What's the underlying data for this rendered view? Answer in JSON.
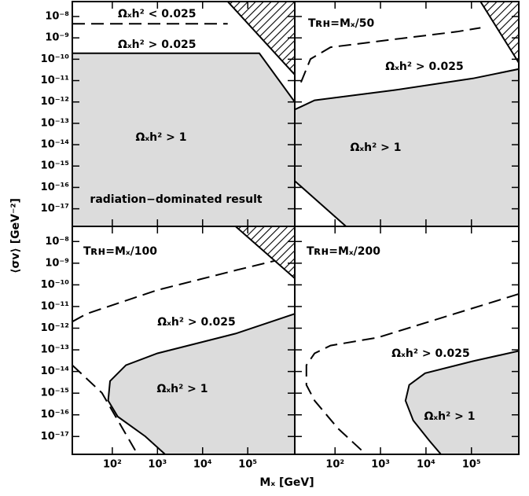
{
  "figure": {
    "xlabel": "Mₓ [GeV]",
    "ylabel": "⟨σv⟩ [GeV⁻²]"
  },
  "chart_data": [
    {
      "type": "line",
      "xscale": "log",
      "yscale": "log",
      "xlim": [
        13,
        1100000
      ],
      "ylim": [
        1.5e-18,
        5e-08
      ],
      "xticks": [
        100,
        1000,
        10000,
        100000
      ],
      "yticks": [
        {
          "value": 1e-17,
          "label": "10⁻¹⁷"
        },
        {
          "value": 1e-16,
          "label": "10⁻¹⁶"
        },
        {
          "value": 1e-15,
          "label": "10⁻¹⁵"
        },
        {
          "value": 1e-14,
          "label": "10⁻¹⁴"
        },
        {
          "value": 1e-13,
          "label": "10⁻¹³"
        },
        {
          "value": 1e-12,
          "label": "10⁻¹²"
        },
        {
          "value": 1e-11,
          "label": "10⁻¹¹"
        },
        {
          "value": 1e-10,
          "label": "10⁻¹⁰"
        },
        {
          "value": 1e-09,
          "label": "10⁻⁹"
        },
        {
          "value": 1e-08,
          "label": "10⁻⁸"
        }
      ],
      "shade": {
        "color": "#dcdcdc",
        "x": [
          13,
          180000,
          1100000,
          1100000,
          13
        ],
        "y": [
          1.9e-10,
          1.9e-10,
          1e-12,
          1.5e-18,
          1.5e-18
        ]
      },
      "hatch": {
        "x": [
          36000,
          1100000,
          1100000
        ],
        "y": [
          5e-08,
          5e-08,
          1.9e-11
        ]
      },
      "dashed": {
        "x": [
          13,
          36000
        ],
        "y": [
          4.6e-09,
          4.6e-09
        ]
      },
      "annotations": [
        {
          "text": "Ωₓh² < 0.025"
        },
        {
          "text": "Ωₓh² > 0.025"
        },
        {
          "text": "Ωₓh² > 1"
        },
        {
          "text": "radiation−dominated result"
        }
      ]
    },
    {
      "type": "line",
      "xscale": "log",
      "yscale": "log",
      "xlim": [
        13,
        1100000
      ],
      "ylim": [
        1.5e-18,
        5e-08
      ],
      "xticks": [
        100,
        1000,
        10000,
        100000
      ],
      "yticks": [
        1e-17,
        1e-16,
        1e-15,
        1e-14,
        1e-13,
        1e-12,
        1e-11,
        1e-10,
        1e-09,
        1e-08
      ],
      "shade": {
        "color": "#dcdcdc",
        "x": [
          13,
          35.5,
          1950,
          107000,
          1100000,
          1100000,
          174,
          13
        ],
        "y": [
          4.4e-13,
          1.2e-12,
          3.55e-12,
          1.26e-11,
          3.47e-11,
          1.5e-18,
          1.5e-18,
          2e-16
        ]
      },
      "hatch": {
        "x": [
          158000,
          1100000,
          1100000
        ],
        "y": [
          5e-08,
          5e-08,
          6.8e-11
        ]
      },
      "dashed": {
        "x": [
          17.8,
          28.8,
          79.4,
          1950,
          47900,
          158000
        ],
        "y": [
          8.3e-12,
          1.02e-10,
          3.63e-10,
          8.5e-10,
          1.95e-09,
          2.95e-09
        ]
      },
      "annotations": [
        {
          "text": "Tʀʜ=Mₓ/50"
        },
        {
          "text": "Ωₓh² > 0.025"
        },
        {
          "text": "Ωₓh² > 1"
        }
      ]
    },
    {
      "type": "line",
      "xscale": "log",
      "yscale": "log",
      "xlim": [
        13,
        1100000
      ],
      "ylim": [
        1.5e-18,
        5e-08
      ],
      "xticks": [
        {
          "value": 100,
          "label": "10²"
        },
        {
          "value": 1000,
          "label": "10³"
        },
        {
          "value": 10000,
          "label": "10⁴"
        },
        {
          "value": 100000,
          "label": "10⁵"
        }
      ],
      "yticks": [
        {
          "value": 1e-17,
          "label": "10⁻¹⁷"
        },
        {
          "value": 1e-16,
          "label": "10⁻¹⁶"
        },
        {
          "value": 1e-15,
          "label": "10⁻¹⁵"
        },
        {
          "value": 1e-14,
          "label": "10⁻¹⁴"
        },
        {
          "value": 1e-13,
          "label": "10⁻¹³"
        },
        {
          "value": 1e-12,
          "label": "10⁻¹²"
        },
        {
          "value": 1e-11,
          "label": "10⁻¹¹"
        },
        {
          "value": 1e-10,
          "label": "10⁻¹⁰"
        },
        {
          "value": 1e-09,
          "label": "10⁻⁹"
        },
        {
          "value": 1e-08,
          "label": "10⁻⁸"
        }
      ],
      "shade": {
        "color": "#dcdcdc",
        "x": [
          1100000,
          53700,
          1000,
          200,
          89,
          81,
          132,
          537,
          1480,
          1100000
        ],
        "y": [
          4.6e-12,
          5.6e-13,
          6.9e-14,
          1.95e-14,
          3.6e-15,
          4.5e-16,
          8.3e-17,
          1.02e-17,
          1.5e-18,
          1.5e-18
        ]
      },
      "hatch": {
        "x": [
          53700,
          1100000,
          1100000
        ],
        "y": [
          5e-08,
          5e-08,
          2e-10
        ]
      },
      "dashed": {
        "x": [
          13,
          26.9,
          1000,
          53700,
          398000,
          null,
          13,
          58.9,
          363
        ],
        "y": [
          2e-12,
          4.6e-12,
          5.75e-11,
          4.7e-10,
          1.29e-09,
          null,
          1.95e-14,
          1.02e-15,
          1.5e-18
        ]
      },
      "annotations": [
        {
          "text": "Tʀʜ=Mₓ/100"
        },
        {
          "text": "Ωₓh² > 0.025"
        },
        {
          "text": "Ωₓh² > 1"
        }
      ]
    },
    {
      "type": "line",
      "xscale": "log",
      "yscale": "log",
      "xlim": [
        13,
        1100000
      ],
      "ylim": [
        1.5e-18,
        5e-08
      ],
      "xticks": [
        {
          "value": 100,
          "label": "10²"
        },
        {
          "value": 1000,
          "label": "10³"
        },
        {
          "value": 10000,
          "label": "10⁴"
        },
        {
          "value": 100000,
          "label": "10⁵"
        }
      ],
      "yticks": [
        1e-17,
        1e-16,
        1e-15,
        1e-14,
        1e-13,
        1e-12,
        1e-11,
        1e-10,
        1e-09,
        1e-08
      ],
      "shade": {
        "color": "#dcdcdc",
        "x": [
          1100000,
          107000,
          9550,
          4270,
          3550,
          5250,
          11700,
          21400,
          1100000
        ],
        "y": [
          8.9e-14,
          3e-14,
          8.3e-15,
          2.4e-15,
          4.5e-16,
          5.5e-17,
          6.6e-18,
          1.5e-18,
          1.5e-18
        ]
      },
      "dashed": {
        "x": [
          1100000,
          871,
          79.4,
          35.5,
          23.4,
          23.4,
          35.5,
          117,
          479
        ],
        "y": [
          3.8e-11,
          3.7e-13,
          1.58e-13,
          6.9e-14,
          1.95e-14,
          2.4e-15,
          4.5e-16,
          2.3e-17,
          1.5e-18
        ]
      },
      "annotations": [
        {
          "text": "Tʀʜ=Mₓ/200"
        },
        {
          "text": "Ωₓh² > 0.025"
        },
        {
          "text": "Ωₓh² > 1"
        }
      ]
    }
  ]
}
